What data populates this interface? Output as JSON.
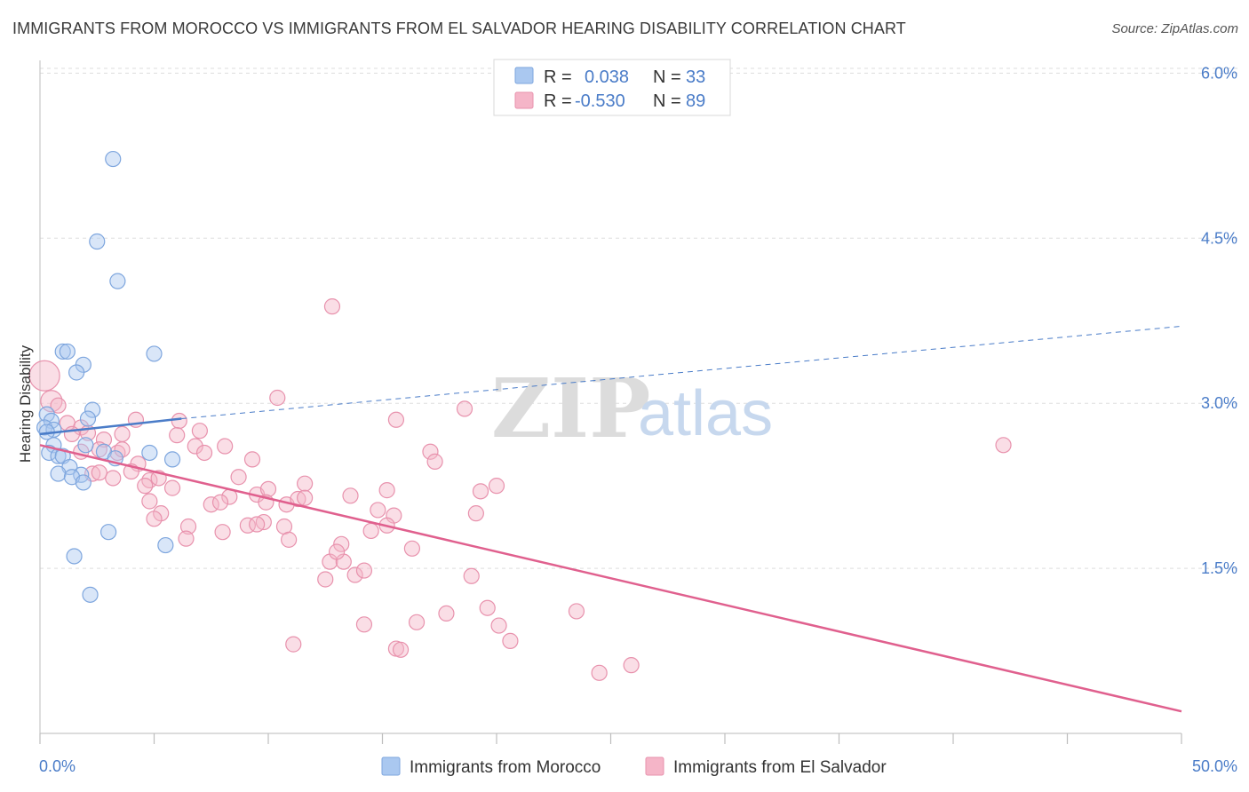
{
  "title": "IMMIGRANTS FROM MOROCCO VS IMMIGRANTS FROM EL SALVADOR HEARING DISABILITY CORRELATION CHART",
  "source": "Source: ZipAtlas.com",
  "watermark": {
    "zip": "ZIP",
    "atlas": "atlas"
  },
  "colors": {
    "morocco": "#4a7cc8",
    "morocco_fill": "#aac8f0",
    "el_salvador": "#e0608e",
    "el_salvador_fill": "#f5b5c8",
    "tick_label": "#4a7cc8",
    "grid": "#dddddd"
  },
  "legend": {
    "r_label": "R =",
    "n_label": "N =",
    "rows": [
      {
        "r": "0.038",
        "n": "33"
      },
      {
        "r": "-0.530",
        "n": "89"
      }
    ]
  },
  "chart_data": {
    "type": "scatter",
    "title": "IMMIGRANTS FROM MOROCCO VS IMMIGRANTS FROM EL SALVADOR HEARING DISABILITY CORRELATION CHART",
    "xlabel": "",
    "ylabel": "Hearing Disability",
    "xlim": [
      0,
      50
    ],
    "ylim": [
      0,
      6.1
    ],
    "x_tick_labels": [
      "0.0%",
      "50.0%"
    ],
    "y_ticks": [
      1.5,
      3.0,
      4.5,
      6.0
    ],
    "y_tick_labels": [
      "1.5%",
      "3.0%",
      "4.5%",
      "6.0%"
    ],
    "grid": true,
    "legend_position": "top-center",
    "series": [
      {
        "name": "Immigrants from Morocco",
        "r": 0.038,
        "n": 33,
        "trend": {
          "x0": 0,
          "y0": 2.72,
          "x1": 6.2,
          "y1": 2.86,
          "dashed_to_x": 50,
          "dashed_to_y": 3.7
        },
        "points": [
          [
            3.2,
            5.22
          ],
          [
            2.5,
            4.47
          ],
          [
            3.4,
            4.11
          ],
          [
            1.0,
            3.47
          ],
          [
            1.2,
            3.47
          ],
          [
            5.0,
            3.45
          ],
          [
            1.9,
            3.35
          ],
          [
            1.6,
            3.28
          ],
          [
            2.3,
            2.94
          ],
          [
            2.1,
            2.86
          ],
          [
            0.3,
            2.9
          ],
          [
            0.5,
            2.84
          ],
          [
            0.2,
            2.78
          ],
          [
            0.6,
            2.76
          ],
          [
            0.3,
            2.74
          ],
          [
            0.6,
            2.62
          ],
          [
            2.0,
            2.62
          ],
          [
            0.4,
            2.55
          ],
          [
            2.8,
            2.56
          ],
          [
            4.8,
            2.55
          ],
          [
            0.8,
            2.52
          ],
          [
            1.0,
            2.52
          ],
          [
            3.3,
            2.5
          ],
          [
            5.8,
            2.49
          ],
          [
            1.3,
            2.42
          ],
          [
            0.8,
            2.36
          ],
          [
            1.8,
            2.35
          ],
          [
            1.4,
            2.33
          ],
          [
            1.9,
            2.28
          ],
          [
            3.0,
            1.83
          ],
          [
            1.5,
            1.61
          ],
          [
            5.5,
            1.71
          ],
          [
            2.2,
            1.26
          ]
        ]
      },
      {
        "name": "Immigrants from El Salvador",
        "r": -0.53,
        "n": 89,
        "trend": {
          "x0": 0,
          "y0": 2.62,
          "x1": 50,
          "y1": 0.2
        },
        "points": [
          [
            0.2,
            3.25
          ],
          [
            0.5,
            3.02
          ],
          [
            0.8,
            2.98
          ],
          [
            1.2,
            2.82
          ],
          [
            1.8,
            2.78
          ],
          [
            1.4,
            2.72
          ],
          [
            2.1,
            2.73
          ],
          [
            2.8,
            2.67
          ],
          [
            3.6,
            2.72
          ],
          [
            4.2,
            2.85
          ],
          [
            6.1,
            2.84
          ],
          [
            6.0,
            2.71
          ],
          [
            7.0,
            2.75
          ],
          [
            2.6,
            2.58
          ],
          [
            3.4,
            2.55
          ],
          [
            3.6,
            2.58
          ],
          [
            4.3,
            2.45
          ],
          [
            4.0,
            2.38
          ],
          [
            3.2,
            2.32
          ],
          [
            4.8,
            2.3
          ],
          [
            5.2,
            2.32
          ],
          [
            4.6,
            2.25
          ],
          [
            5.8,
            2.23
          ],
          [
            6.8,
            2.61
          ],
          [
            7.2,
            2.55
          ],
          [
            8.1,
            2.61
          ],
          [
            9.3,
            2.49
          ],
          [
            8.7,
            2.33
          ],
          [
            9.5,
            2.17
          ],
          [
            8.3,
            2.15
          ],
          [
            7.5,
            2.08
          ],
          [
            7.9,
            2.1
          ],
          [
            10.4,
            3.05
          ],
          [
            10.0,
            2.22
          ],
          [
            10.8,
            2.08
          ],
          [
            11.3,
            2.13
          ],
          [
            11.6,
            2.27
          ],
          [
            12.8,
            3.88
          ],
          [
            13.6,
            2.16
          ],
          [
            15.2,
            2.21
          ],
          [
            14.8,
            2.03
          ],
          [
            15.5,
            1.98
          ],
          [
            15.2,
            1.89
          ],
          [
            14.5,
            1.84
          ],
          [
            13.2,
            1.72
          ],
          [
            12.7,
            1.56
          ],
          [
            12.5,
            1.4
          ],
          [
            13.3,
            1.56
          ],
          [
            13.0,
            1.65
          ],
          [
            13.8,
            1.44
          ],
          [
            14.2,
            1.48
          ],
          [
            15.6,
            2.85
          ],
          [
            17.1,
            2.56
          ],
          [
            17.3,
            2.47
          ],
          [
            18.6,
            2.95
          ],
          [
            19.3,
            2.2
          ],
          [
            20.0,
            2.25
          ],
          [
            19.1,
            2.0
          ],
          [
            16.3,
            1.68
          ],
          [
            18.9,
            1.43
          ],
          [
            19.6,
            1.14
          ],
          [
            20.1,
            0.98
          ],
          [
            20.6,
            0.84
          ],
          [
            17.8,
            1.09
          ],
          [
            16.5,
            1.01
          ],
          [
            15.6,
            0.77
          ],
          [
            15.8,
            0.76
          ],
          [
            14.2,
            0.99
          ],
          [
            11.1,
            0.81
          ],
          [
            23.5,
            1.11
          ],
          [
            25.9,
            0.62
          ],
          [
            24.5,
            0.55
          ],
          [
            42.2,
            2.62
          ],
          [
            9.8,
            1.92
          ],
          [
            9.1,
            1.89
          ],
          [
            10.7,
            1.88
          ],
          [
            9.5,
            1.9
          ],
          [
            8.0,
            1.83
          ],
          [
            10.9,
            1.76
          ],
          [
            6.5,
            1.88
          ],
          [
            6.4,
            1.77
          ],
          [
            5.3,
            2.0
          ],
          [
            4.8,
            2.11
          ],
          [
            1.8,
            2.56
          ],
          [
            2.3,
            2.36
          ],
          [
            2.6,
            2.37
          ],
          [
            11.6,
            2.14
          ],
          [
            9.9,
            2.1
          ],
          [
            5.0,
            1.95
          ]
        ]
      }
    ]
  },
  "bottom_legend": [
    "Immigrants from Morocco",
    "Immigrants from El Salvador"
  ]
}
